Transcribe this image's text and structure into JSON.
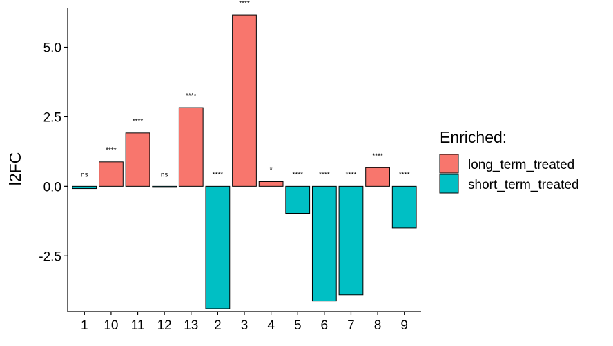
{
  "chart_data": {
    "type": "bar",
    "ylabel": "l2FC",
    "xlabel": "",
    "ylim": [
      -4.5,
      6.4
    ],
    "yticks": [
      5.0,
      2.5,
      0.0,
      -2.5
    ],
    "ytick_labels": [
      "5.0",
      "2.5",
      "0.0",
      "-2.5"
    ],
    "categories": [
      "1",
      "10",
      "11",
      "12",
      "13",
      "2",
      "3",
      "4",
      "5",
      "6",
      "7",
      "8",
      "9"
    ],
    "values": [
      -0.08,
      0.88,
      1.92,
      -0.03,
      2.83,
      -4.4,
      6.15,
      0.17,
      -0.97,
      -4.12,
      -3.9,
      0.67,
      -1.5
    ],
    "groups": [
      "short_term_treated",
      "long_term_treated",
      "long_term_treated",
      "short_term_treated",
      "long_term_treated",
      "short_term_treated",
      "long_term_treated",
      "long_term_treated",
      "short_term_treated",
      "short_term_treated",
      "short_term_treated",
      "long_term_treated",
      "short_term_treated"
    ],
    "significance": [
      "ns",
      "****",
      "****",
      "ns",
      "****",
      "****",
      "****",
      "*",
      "****",
      "****",
      "****",
      "****",
      "****"
    ],
    "legend": {
      "title": "Enriched:",
      "placement": "right",
      "entries": [
        {
          "name": "long_term_treated",
          "color": "#F8766D"
        },
        {
          "name": "short_term_treated",
          "color": "#00BFC4"
        }
      ]
    },
    "grid": false
  }
}
